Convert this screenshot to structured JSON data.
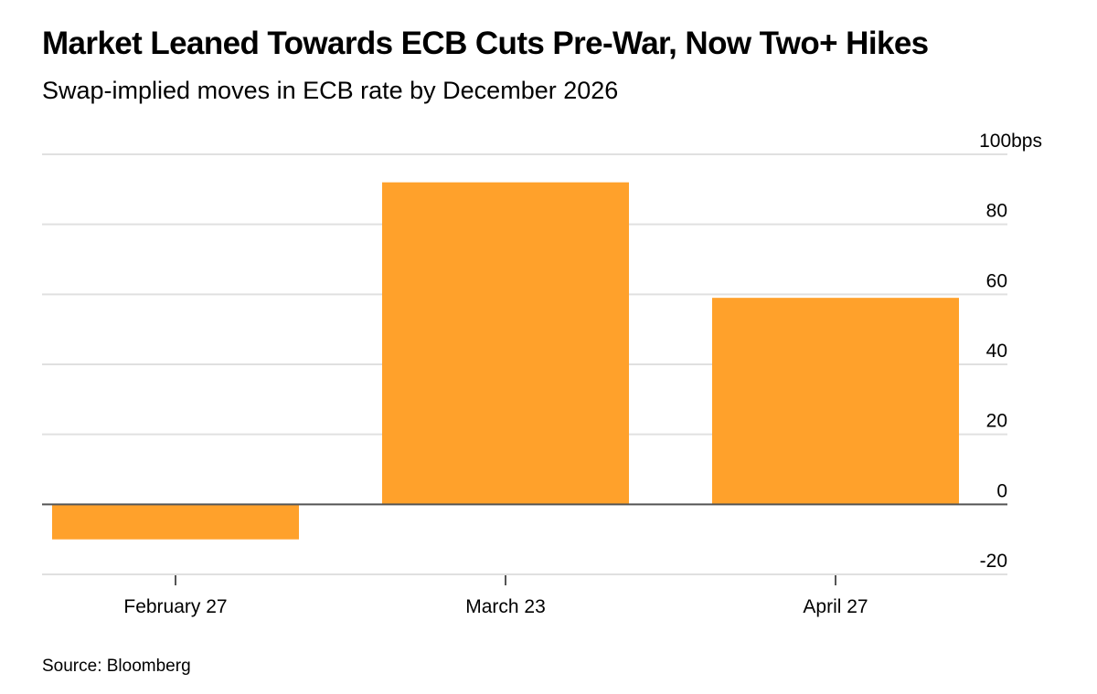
{
  "header": {
    "title": "Market Leaned Towards ECB Cuts Pre-War, Now Two+ Hikes",
    "subtitle": "Swap-implied moves in ECB rate by December 2026"
  },
  "footer": {
    "source": "Source: Bloomberg"
  },
  "colors": {
    "bar": "#FFA12B",
    "gridline": "#E0E0E0",
    "zero_line": "#555555",
    "text": "#000000"
  },
  "chart_data": {
    "type": "bar",
    "title": "Market Leaned Towards ECB Cuts Pre-War, Now Two+ Hikes",
    "subtitle": "Swap-implied moves in ECB rate by December 2026",
    "categories": [
      "February 27",
      "March 23",
      "April 27"
    ],
    "values": [
      -10,
      92,
      59
    ],
    "ylim": [
      -20,
      100
    ],
    "yticks": [
      -20,
      0,
      20,
      40,
      60,
      80,
      100
    ],
    "ytick_labels": [
      "-20",
      "0",
      "20",
      "40",
      "60",
      "80",
      "100bps"
    ],
    "y_axis_side": "right",
    "grid": true,
    "legend": "none",
    "source": "Source: Bloomberg"
  }
}
